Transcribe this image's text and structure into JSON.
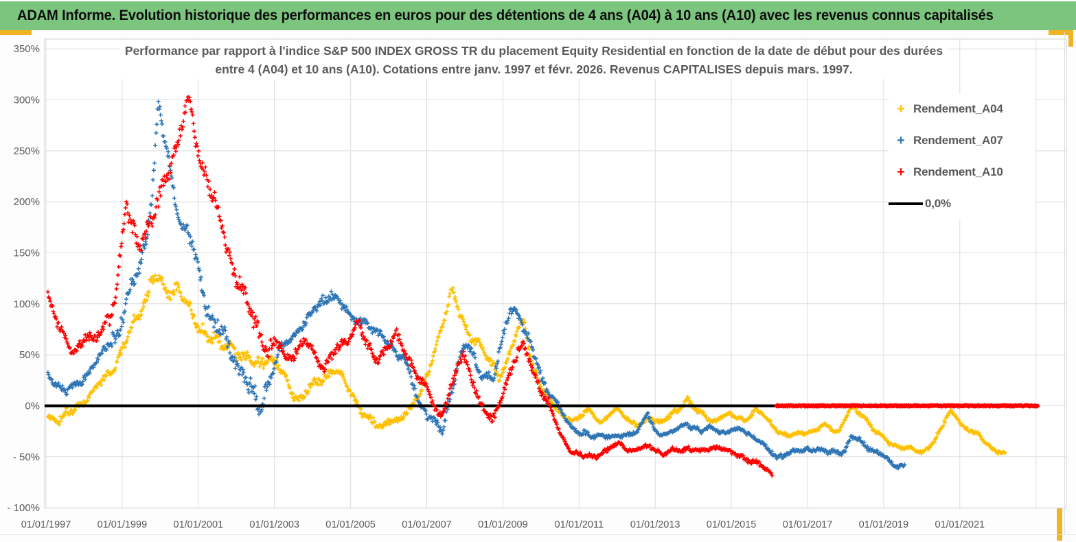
{
  "header": {
    "title": "ADAM Informe. Evolution historique des performances en euros pour des détentions de 4 ans (A04) à 10 ans (A10) avec les revenus connus capitalisés",
    "bg_color": "#7CC57E",
    "accent_color": "#F0B322"
  },
  "chart_data": {
    "type": "scatter",
    "title_line1": "Performance par rapport à l'indice S&P 500 INDEX GROSS TR  du placement Equity Residential en fonction de la date de début pour des durées",
    "title_line2": "entre 4 (A04) et 10 ans (A10). Cotations entre janv. 1997 et févr. 2026. Revenus CAPITALISES depuis mars. 1997.",
    "colors": {
      "grid": "#DCDCDC",
      "plot_border": "#D9D9D9",
      "axis_text": "#595959",
      "title_text": "#595959"
    },
    "x_axis": {
      "min_year": 1997.0,
      "max_year": 2023.8,
      "tick_labels": [
        "01/01/1997",
        "01/01/1999",
        "01/01/2001",
        "01/01/2003",
        "01/01/2005",
        "01/01/2007",
        "01/01/2009",
        "01/01/2011",
        "01/01/2013",
        "01/01/2015",
        "01/01/2017",
        "01/01/2019",
        "01/01/2021"
      ],
      "tick_years": [
        1997,
        1999,
        2001,
        2003,
        2005,
        2007,
        2009,
        2011,
        2013,
        2015,
        2017,
        2019,
        2021
      ],
      "gridline_years": [
        1997,
        1999,
        2001,
        2003,
        2005,
        2007,
        2009,
        2011,
        2013,
        2015,
        2017,
        2019,
        2021,
        2023
      ]
    },
    "y_axis": {
      "min": -100,
      "max": 350,
      "unit": "%",
      "tick_labels": [
        "350%",
        "300%",
        "250%",
        "200%",
        "150%",
        "100%",
        "50%",
        "0%",
        "- 50%",
        "- 100%"
      ],
      "tick_values": [
        350,
        300,
        250,
        200,
        150,
        100,
        50,
        0,
        -50,
        -100
      ]
    },
    "zero_line": {
      "value": 0,
      "color": "#000000",
      "start_year": 1997.0,
      "end_year": 2023.05
    },
    "legend": {
      "position": "right",
      "items": [
        {
          "label": "Rendement_A04",
          "color": "#FFC000",
          "marker": "plus"
        },
        {
          "label": "Rendement_A07",
          "color": "#2E75B6",
          "marker": "plus"
        },
        {
          "label": "Rendement_A10",
          "color": "#FF0000",
          "marker": "plus"
        },
        {
          "label": "0,0%",
          "color": "#000000",
          "marker": "line"
        }
      ]
    },
    "series": [
      {
        "name": "Rendement_A04",
        "color": "#FFC000",
        "anchors": [
          [
            1997.05,
            -10
          ],
          [
            1997.35,
            -13
          ],
          [
            1997.7,
            -5
          ],
          [
            1998.0,
            5
          ],
          [
            1998.4,
            20
          ],
          [
            1998.8,
            40
          ],
          [
            1999.1,
            62
          ],
          [
            1999.4,
            88
          ],
          [
            1999.65,
            108
          ],
          [
            1999.8,
            126
          ],
          [
            2000.0,
            118
          ],
          [
            2000.2,
            110
          ],
          [
            2000.45,
            118
          ],
          [
            2000.7,
            96
          ],
          [
            2000.95,
            82
          ],
          [
            2001.3,
            70
          ],
          [
            2001.6,
            55
          ],
          [
            2001.9,
            62
          ],
          [
            2002.2,
            45
          ],
          [
            2002.5,
            40
          ],
          [
            2002.8,
            50
          ],
          [
            2003.1,
            38
          ],
          [
            2003.45,
            15
          ],
          [
            2003.7,
            7
          ],
          [
            2003.95,
            18
          ],
          [
            2004.3,
            30
          ],
          [
            2004.6,
            34
          ],
          [
            2004.9,
            22
          ],
          [
            2005.15,
            4
          ],
          [
            2005.45,
            -14
          ],
          [
            2005.75,
            -20
          ],
          [
            2006.0,
            -12
          ],
          [
            2006.25,
            -18
          ],
          [
            2006.5,
            -6
          ],
          [
            2006.8,
            12
          ],
          [
            2007.1,
            35
          ],
          [
            2007.4,
            80
          ],
          [
            2007.65,
            116
          ],
          [
            2007.9,
            85
          ],
          [
            2008.1,
            68
          ],
          [
            2008.35,
            66
          ],
          [
            2008.6,
            45
          ],
          [
            2008.9,
            27
          ],
          [
            2009.15,
            50
          ],
          [
            2009.4,
            75
          ],
          [
            2009.55,
            80
          ],
          [
            2009.75,
            45
          ],
          [
            2010.0,
            20
          ],
          [
            2010.3,
            0
          ],
          [
            2010.6,
            -10
          ],
          [
            2010.95,
            -15
          ],
          [
            2011.25,
            -3
          ],
          [
            2011.6,
            -16
          ],
          [
            2011.97,
            -4
          ],
          [
            2012.3,
            -12
          ],
          [
            2012.55,
            -20
          ],
          [
            2012.9,
            -12
          ],
          [
            2013.2,
            -15
          ],
          [
            2013.6,
            -5
          ],
          [
            2013.85,
            8
          ],
          [
            2014.1,
            -5
          ],
          [
            2014.5,
            -16
          ],
          [
            2014.8,
            -8
          ],
          [
            2015.05,
            -11
          ],
          [
            2015.35,
            -14
          ],
          [
            2015.63,
            -3
          ],
          [
            2015.9,
            -12
          ],
          [
            2016.1,
            -20
          ],
          [
            2016.5,
            -30
          ],
          [
            2016.75,
            -28
          ],
          [
            2017.1,
            -25
          ],
          [
            2017.45,
            -20
          ],
          [
            2017.8,
            -25
          ],
          [
            2018.15,
            -1
          ],
          [
            2018.35,
            -8
          ],
          [
            2018.55,
            -13
          ],
          [
            2018.8,
            -25
          ],
          [
            2019.15,
            -38
          ],
          [
            2019.5,
            -40
          ],
          [
            2019.8,
            -43
          ],
          [
            2019.95,
            -48
          ],
          [
            2020.3,
            -35
          ],
          [
            2020.55,
            -20
          ],
          [
            2020.76,
            -5
          ],
          [
            2021.0,
            -15
          ],
          [
            2021.15,
            -22
          ],
          [
            2021.4,
            -27
          ],
          [
            2021.76,
            -38
          ],
          [
            2022.0,
            -45
          ],
          [
            2022.2,
            -48
          ]
        ]
      },
      {
        "name": "Rendement_A07",
        "color": "#2E75B6",
        "anchors": [
          [
            1997.05,
            30
          ],
          [
            1997.3,
            22
          ],
          [
            1997.55,
            13
          ],
          [
            1997.8,
            20
          ],
          [
            1998.1,
            32
          ],
          [
            1998.45,
            50
          ],
          [
            1998.8,
            70
          ],
          [
            1999.1,
            95
          ],
          [
            1999.4,
            130
          ],
          [
            1999.6,
            160
          ],
          [
            1999.8,
            215
          ],
          [
            1999.95,
            292
          ],
          [
            2000.1,
            262
          ],
          [
            2000.3,
            225
          ],
          [
            2000.55,
            180
          ],
          [
            2000.8,
            160
          ],
          [
            2001.05,
            125
          ],
          [
            2001.35,
            85
          ],
          [
            2001.6,
            70
          ],
          [
            2001.9,
            52
          ],
          [
            2002.2,
            30
          ],
          [
            2002.45,
            8
          ],
          [
            2002.6,
            -2
          ],
          [
            2002.85,
            25
          ],
          [
            2003.1,
            50
          ],
          [
            2003.4,
            65
          ],
          [
            2003.7,
            78
          ],
          [
            2004.0,
            90
          ],
          [
            2004.3,
            105
          ],
          [
            2004.5,
            112
          ],
          [
            2004.75,
            98
          ],
          [
            2005.0,
            88
          ],
          [
            2005.3,
            85
          ],
          [
            2005.6,
            70
          ],
          [
            2005.9,
            68
          ],
          [
            2006.2,
            50
          ],
          [
            2006.5,
            38
          ],
          [
            2006.8,
            5
          ],
          [
            2007.1,
            -15
          ],
          [
            2007.42,
            -22
          ],
          [
            2007.65,
            15
          ],
          [
            2007.9,
            50
          ],
          [
            2008.1,
            60
          ],
          [
            2008.4,
            35
          ],
          [
            2008.74,
            22
          ],
          [
            2009.0,
            70
          ],
          [
            2009.2,
            98
          ],
          [
            2009.35,
            92
          ],
          [
            2009.6,
            70
          ],
          [
            2009.9,
            45
          ],
          [
            2010.15,
            15
          ],
          [
            2010.45,
            0
          ],
          [
            2010.7,
            -15
          ],
          [
            2011.0,
            -27
          ],
          [
            2011.3,
            -30
          ],
          [
            2011.6,
            -27
          ],
          [
            2011.9,
            -32
          ],
          [
            2012.2,
            -28
          ],
          [
            2012.55,
            -25
          ],
          [
            2012.8,
            -8
          ],
          [
            2013.0,
            -25
          ],
          [
            2013.3,
            -28
          ],
          [
            2013.65,
            -22
          ],
          [
            2013.85,
            -17
          ],
          [
            2014.2,
            -25
          ],
          [
            2014.5,
            -22
          ],
          [
            2014.8,
            -26
          ],
          [
            2015.1,
            -24
          ],
          [
            2015.4,
            -25
          ],
          [
            2015.68,
            -33
          ],
          [
            2016.0,
            -45
          ],
          [
            2016.2,
            -50
          ],
          [
            2016.5,
            -46
          ],
          [
            2016.8,
            -45
          ],
          [
            2017.16,
            -41
          ],
          [
            2017.5,
            -46
          ],
          [
            2017.97,
            -44
          ],
          [
            2018.15,
            -31
          ],
          [
            2018.4,
            -36
          ],
          [
            2018.6,
            -41
          ],
          [
            2018.96,
            -48
          ],
          [
            2019.23,
            -59
          ],
          [
            2019.45,
            -58
          ],
          [
            2019.56,
            -57
          ]
        ]
      },
      {
        "name": "Rendement_A10",
        "color": "#FF0000",
        "anchors": [
          [
            1997.05,
            112
          ],
          [
            1997.25,
            88
          ],
          [
            1997.45,
            68
          ],
          [
            1997.65,
            52
          ],
          [
            1997.85,
            58
          ],
          [
            1998.05,
            72
          ],
          [
            1998.25,
            62
          ],
          [
            1998.45,
            72
          ],
          [
            1998.65,
            88
          ],
          [
            1998.86,
            118
          ],
          [
            1999.0,
            160
          ],
          [
            1999.1,
            195
          ],
          [
            1999.25,
            172
          ],
          [
            1999.45,
            160
          ],
          [
            1999.65,
            175
          ],
          [
            1999.85,
            182
          ],
          [
            2000.05,
            212
          ],
          [
            2000.25,
            238
          ],
          [
            2000.45,
            262
          ],
          [
            2000.66,
            285
          ],
          [
            2000.78,
            296
          ],
          [
            2000.95,
            258
          ],
          [
            2001.15,
            235
          ],
          [
            2001.4,
            200
          ],
          [
            2001.65,
            170
          ],
          [
            2001.9,
            140
          ],
          [
            2002.1,
            120
          ],
          [
            2002.35,
            90
          ],
          [
            2002.6,
            75
          ],
          [
            2002.85,
            55
          ],
          [
            2003.05,
            62
          ],
          [
            2003.3,
            45
          ],
          [
            2003.55,
            55
          ],
          [
            2003.8,
            62
          ],
          [
            2004.05,
            50
          ],
          [
            2004.3,
            40
          ],
          [
            2004.55,
            52
          ],
          [
            2004.8,
            58
          ],
          [
            2005.05,
            75
          ],
          [
            2005.2,
            85
          ],
          [
            2005.45,
            55
          ],
          [
            2005.7,
            45
          ],
          [
            2005.95,
            60
          ],
          [
            2006.2,
            68
          ],
          [
            2006.45,
            50
          ],
          [
            2006.7,
            35
          ],
          [
            2006.95,
            18
          ],
          [
            2007.15,
            2
          ],
          [
            2007.35,
            -10
          ],
          [
            2007.6,
            15
          ],
          [
            2007.95,
            48
          ],
          [
            2008.2,
            28
          ],
          [
            2008.45,
            0
          ],
          [
            2008.74,
            -18
          ],
          [
            2009.0,
            15
          ],
          [
            2009.3,
            45
          ],
          [
            2009.55,
            58
          ],
          [
            2009.8,
            35
          ],
          [
            2010.05,
            12
          ],
          [
            2010.3,
            -8
          ],
          [
            2010.55,
            -30
          ],
          [
            2010.8,
            -45
          ],
          [
            2011.1,
            -50
          ],
          [
            2011.4,
            -48
          ],
          [
            2011.75,
            -44
          ],
          [
            2012.1,
            -36
          ],
          [
            2012.4,
            -45
          ],
          [
            2012.9,
            -39
          ],
          [
            2013.2,
            -47
          ],
          [
            2013.6,
            -44
          ],
          [
            2013.85,
            -41
          ],
          [
            2014.2,
            -46
          ],
          [
            2014.7,
            -39
          ],
          [
            2015.0,
            -47
          ],
          [
            2015.3,
            -50
          ],
          [
            2015.63,
            -55
          ],
          [
            2015.9,
            -63
          ],
          [
            2016.08,
            -68
          ]
        ],
        "flat_zero": {
          "from": 2016.18,
          "to": 2023.05,
          "value": 0
        }
      }
    ]
  }
}
